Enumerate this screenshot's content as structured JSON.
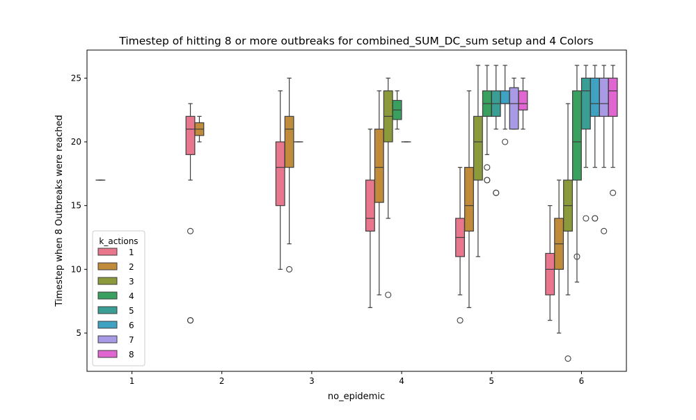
{
  "chart_data": {
    "type": "box",
    "title": "Timestep of hitting 8 or more outbreaks for combined_SUM_DC_sum setup and 4 Colors",
    "xlabel": "no_epidemic",
    "ylabel": "Timestep when 8 Outbreaks were reached",
    "categories": [
      "1",
      "2",
      "3",
      "4",
      "5",
      "6"
    ],
    "ylim": [
      2,
      27.2
    ],
    "yticks": [
      5,
      10,
      15,
      20,
      25
    ],
    "grid": false,
    "legend": {
      "title": "k_actions",
      "position": "lower-left"
    },
    "series": [
      {
        "name": "1",
        "color": "#e8768d",
        "boxes": [
          {
            "category": "1",
            "whislo": 17,
            "q1": 17,
            "median": 17,
            "q3": 17,
            "whishi": 17,
            "fliers": []
          },
          {
            "category": "2",
            "whislo": 17,
            "q1": 19,
            "median": 21,
            "q3": 22,
            "whishi": 23,
            "fliers": [
              13,
              6,
              6
            ]
          },
          {
            "category": "3",
            "whislo": 10,
            "q1": 15,
            "median": 18,
            "q3": 20,
            "whishi": 24,
            "fliers": []
          },
          {
            "category": "4",
            "whislo": 7,
            "q1": 13,
            "median": 14,
            "q3": 17,
            "whishi": 21,
            "fliers": []
          },
          {
            "category": "5",
            "whislo": 8,
            "q1": 11,
            "median": 12.5,
            "q3": 14,
            "whishi": 18,
            "fliers": [
              6
            ]
          },
          {
            "category": "6",
            "whislo": 6,
            "q1": 8,
            "median": 10,
            "q3": 11.25,
            "whishi": 15,
            "fliers": []
          }
        ]
      },
      {
        "name": "2",
        "color": "#c08b3a",
        "boxes": [
          {
            "category": "2",
            "whislo": 20,
            "q1": 20.5,
            "median": 21,
            "q3": 21.5,
            "whishi": 22,
            "fliers": []
          },
          {
            "category": "3",
            "whislo": 12,
            "q1": 18,
            "median": 21,
            "q3": 22,
            "whishi": 25,
            "fliers": [
              10
            ]
          },
          {
            "category": "4",
            "whislo": 8,
            "q1": 15.25,
            "median": 18,
            "q3": 21,
            "whishi": 24,
            "fliers": []
          },
          {
            "category": "5",
            "whislo": 7,
            "q1": 13,
            "median": 15,
            "q3": 18,
            "whishi": 24,
            "fliers": []
          },
          {
            "category": "6",
            "whislo": 5,
            "q1": 10,
            "median": 12,
            "q3": 14,
            "whishi": 17,
            "fliers": []
          }
        ]
      },
      {
        "name": "3",
        "color": "#8d9a3c",
        "boxes": [
          {
            "category": "3",
            "whislo": 20,
            "q1": 20,
            "median": 20,
            "q3": 20,
            "whishi": 20,
            "fliers": []
          },
          {
            "category": "4",
            "whislo": 14,
            "q1": 20,
            "median": 22,
            "q3": 24,
            "whishi": 25,
            "fliers": [
              8
            ]
          },
          {
            "category": "5",
            "whislo": 11,
            "q1": 17,
            "median": 20,
            "q3": 22,
            "whishi": 26,
            "fliers": []
          },
          {
            "category": "6",
            "whislo": 8,
            "q1": 13,
            "median": 15,
            "q3": 17,
            "whishi": 23,
            "fliers": [
              3
            ]
          }
        ]
      },
      {
        "name": "4",
        "color": "#3aa05f",
        "boxes": [
          {
            "category": "4",
            "whislo": 21,
            "q1": 21.75,
            "median": 22.5,
            "q3": 23.25,
            "whishi": 24,
            "fliers": []
          },
          {
            "category": "5",
            "whislo": 19,
            "q1": 22,
            "median": 23,
            "q3": 24,
            "whishi": 26,
            "fliers": [
              18,
              17,
              17
            ]
          },
          {
            "category": "6",
            "whislo": 9,
            "q1": 17,
            "median": 20,
            "q3": 24,
            "whishi": 26,
            "fliers": [
              11
            ]
          }
        ]
      },
      {
        "name": "5",
        "color": "#3a9e94",
        "boxes": [
          {
            "category": "4",
            "whislo": 20,
            "q1": 20,
            "median": 20,
            "q3": 20,
            "whishi": 20,
            "fliers": []
          },
          {
            "category": "5",
            "whislo": 21,
            "q1": 22,
            "median": 23,
            "q3": 24,
            "whishi": 26,
            "fliers": [
              16,
              16
            ]
          },
          {
            "category": "6",
            "whislo": 18,
            "q1": 21,
            "median": 24,
            "q3": 25,
            "whishi": 26,
            "fliers": [
              14
            ]
          }
        ]
      },
      {
        "name": "6",
        "color": "#3fa2c2",
        "boxes": [
          {
            "category": "5",
            "whislo": 21,
            "q1": 23,
            "median": 23,
            "q3": 24,
            "whishi": 26,
            "fliers": [
              20
            ]
          },
          {
            "category": "6",
            "whislo": 18,
            "q1": 22,
            "median": 23,
            "q3": 25,
            "whishi": 26,
            "fliers": [
              14,
              14
            ]
          }
        ]
      },
      {
        "name": "7",
        "color": "#a99ae6",
        "boxes": [
          {
            "category": "5",
            "whislo": 21,
            "q1": 21,
            "median": 23,
            "q3": 24.25,
            "whishi": 25,
            "fliers": []
          },
          {
            "category": "6",
            "whislo": 18,
            "q1": 22,
            "median": 23,
            "q3": 25,
            "whishi": 26,
            "fliers": [
              13
            ]
          }
        ]
      },
      {
        "name": "8",
        "color": "#e067d1",
        "boxes": [
          {
            "category": "5",
            "whislo": 21,
            "q1": 22.5,
            "median": 23,
            "q3": 24,
            "whishi": 25,
            "fliers": []
          },
          {
            "category": "6",
            "whislo": 18,
            "q1": 22,
            "median": 24,
            "q3": 25,
            "whishi": 26,
            "fliers": [
              16
            ]
          }
        ]
      }
    ]
  }
}
